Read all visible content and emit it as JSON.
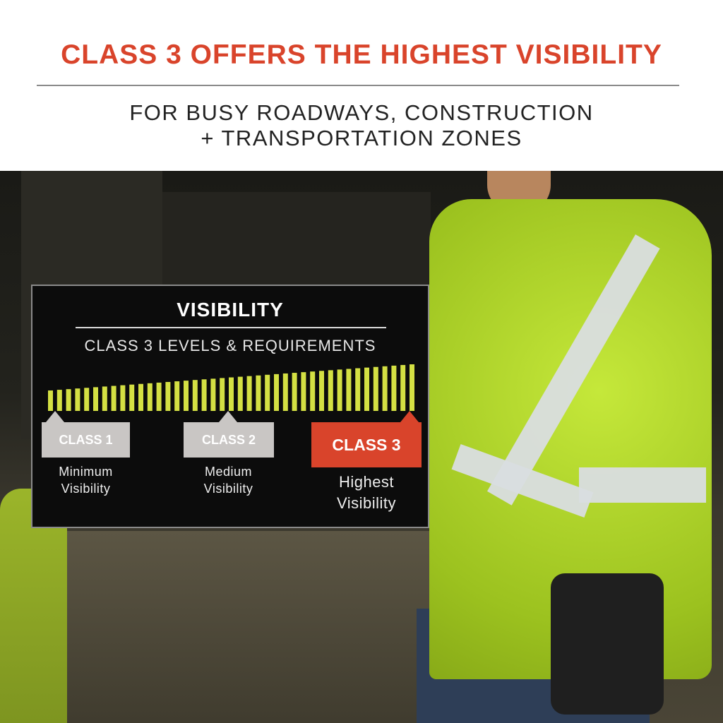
{
  "header": {
    "headline": "CLASS 3 OFFERS THE HIGHEST VISIBILITY",
    "subtitle_line1": "FOR BUSY ROADWAYS, CONSTRUCTION",
    "subtitle_line2": "+ TRANSPORTATION ZONES",
    "accent_color": "#d9442b"
  },
  "panel": {
    "title": "VISIBILITY",
    "subtitle": "CLASS 3 LEVELS & REQUIREMENTS",
    "bar_color": "#d4e043",
    "bar_count": 41,
    "classes": [
      {
        "label": "CLASS 1",
        "desc1": "Minimum",
        "desc2": "Visibility"
      },
      {
        "label": "CLASS 2",
        "desc1": "Medium",
        "desc2": "Visibility"
      },
      {
        "label": "CLASS 3",
        "desc1": "Highest",
        "desc2": "Visibility",
        "highlighted": true
      }
    ]
  }
}
